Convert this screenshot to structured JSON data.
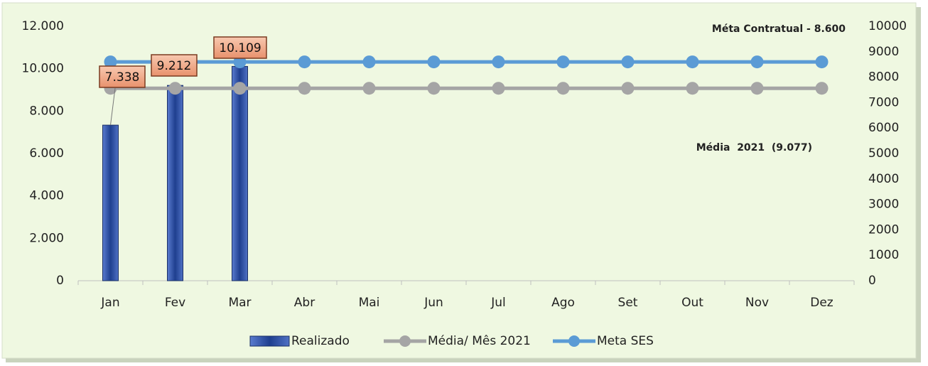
{
  "chart_data": {
    "type": "bar",
    "categories": [
      "Jan",
      "Fev",
      "Mar",
      "Abr",
      "Mai",
      "Jun",
      "Jul",
      "Ago",
      "Set",
      "Out",
      "Nov",
      "Dez"
    ],
    "series": [
      {
        "name": "Realizado",
        "type": "bar",
        "color": "#2f4f9e",
        "values": [
          7338,
          9212,
          10109,
          null,
          null,
          null,
          null,
          null,
          null,
          null,
          null,
          null
        ],
        "value_labels": [
          "7.338",
          "9.212",
          "10.109",
          null,
          null,
          null,
          null,
          null,
          null,
          null,
          null,
          null
        ]
      },
      {
        "name": "Média/ Mês 2021",
        "type": "line",
        "color": "#a5a5a5",
        "values": [
          9077,
          9077,
          9077,
          9077,
          9077,
          9077,
          9077,
          9077,
          9077,
          9077,
          9077,
          9077
        ]
      },
      {
        "name": "Meta SES",
        "type": "line",
        "axis": "y2",
        "color": "#5b9bd5",
        "values": [
          8600,
          8600,
          8600,
          8600,
          8600,
          8600,
          8600,
          8600,
          8600,
          8600,
          8600,
          8600
        ]
      }
    ],
    "ylim": [
      0,
      12000
    ],
    "yticks": [
      0,
      {
        "value": 2000,
        "label": "2.000"
      },
      {
        "value": 4000,
        "label": "4.000"
      },
      {
        "value": 6000,
        "label": "6.000"
      },
      {
        "value": 8000,
        "label": "8.000"
      },
      {
        "value": 10000,
        "label": "10.000"
      },
      {
        "value": 12000,
        "label": "12.000"
      }
    ],
    "y2lim": [
      0,
      10000
    ],
    "y2ticks": [
      0,
      1000,
      2000,
      3000,
      4000,
      5000,
      6000,
      7000,
      8000,
      9000,
      10000
    ],
    "annotations": [
      "Méta Contratual - 8.600",
      "Média  2021  (9.077)"
    ],
    "legend": "bottom"
  }
}
